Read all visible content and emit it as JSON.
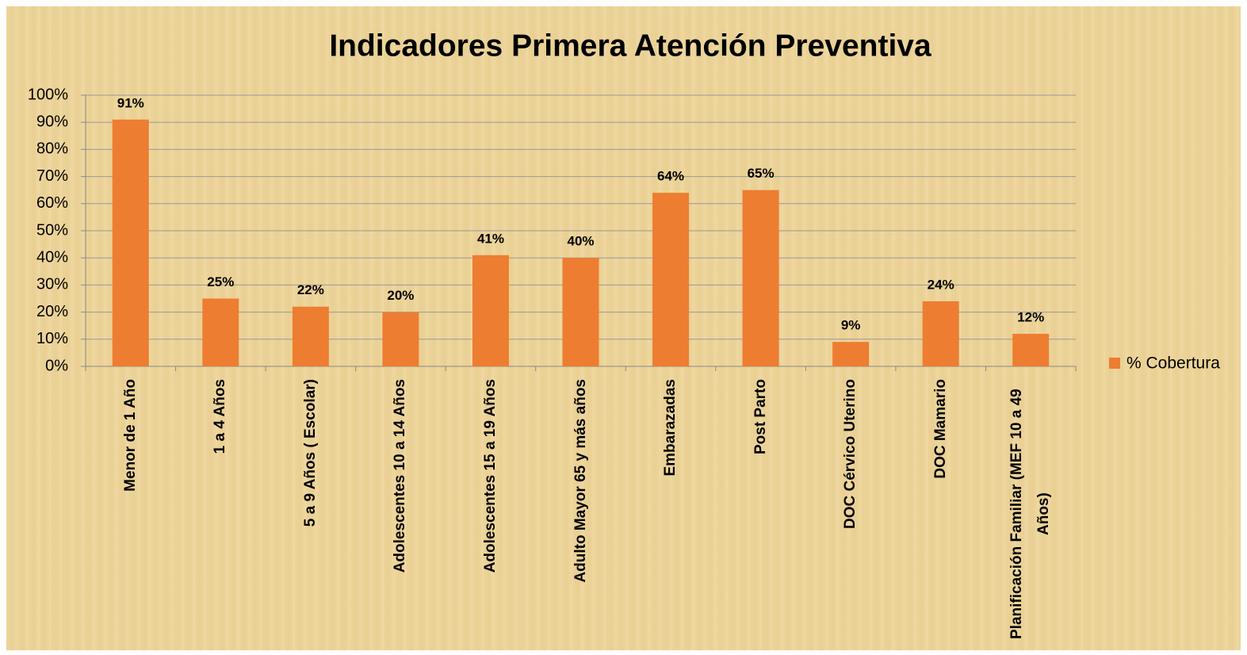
{
  "chart_data": {
    "type": "bar",
    "title": "Indicadores Primera Atención Preventiva",
    "categories": [
      "Menor de 1 Año",
      "1 a 4 Años",
      "5 a 9 Años ( Escolar)",
      "Adolescentes 10 a 14 Años",
      "Adolescentes 15 a 19 Años",
      "Adulto Mayor 65 y más años",
      "Embarazadas",
      "Post Parto",
      "DOC Cérvico Uterino",
      "DOC Mamario",
      "Planificación Familiar (MEF 10 a 49 Años)"
    ],
    "series": [
      {
        "name": "% Cobertura",
        "color": "#ed7d31",
        "values": [
          91,
          25,
          22,
          20,
          41,
          40,
          64,
          65,
          9,
          24,
          12
        ],
        "value_labels": [
          "91%",
          "25%",
          "22%",
          "20%",
          "41%",
          "40%",
          "64%",
          "65%",
          "9%",
          "24%",
          "12%"
        ]
      }
    ],
    "ylim": [
      0,
      100
    ],
    "yticks": [
      {
        "value": 0,
        "label": "0%"
      },
      {
        "value": 10,
        "label": "10%"
      },
      {
        "value": 20,
        "label": "20%"
      },
      {
        "value": 30,
        "label": "30%"
      },
      {
        "value": 40,
        "label": "40%"
      },
      {
        "value": 50,
        "label": "50%"
      },
      {
        "value": 60,
        "label": "60%"
      },
      {
        "value": 70,
        "label": "70%"
      },
      {
        "value": 80,
        "label": "80%"
      },
      {
        "value": 90,
        "label": "90%"
      },
      {
        "value": 100,
        "label": "100%"
      }
    ],
    "grid": true,
    "legend": "right"
  }
}
